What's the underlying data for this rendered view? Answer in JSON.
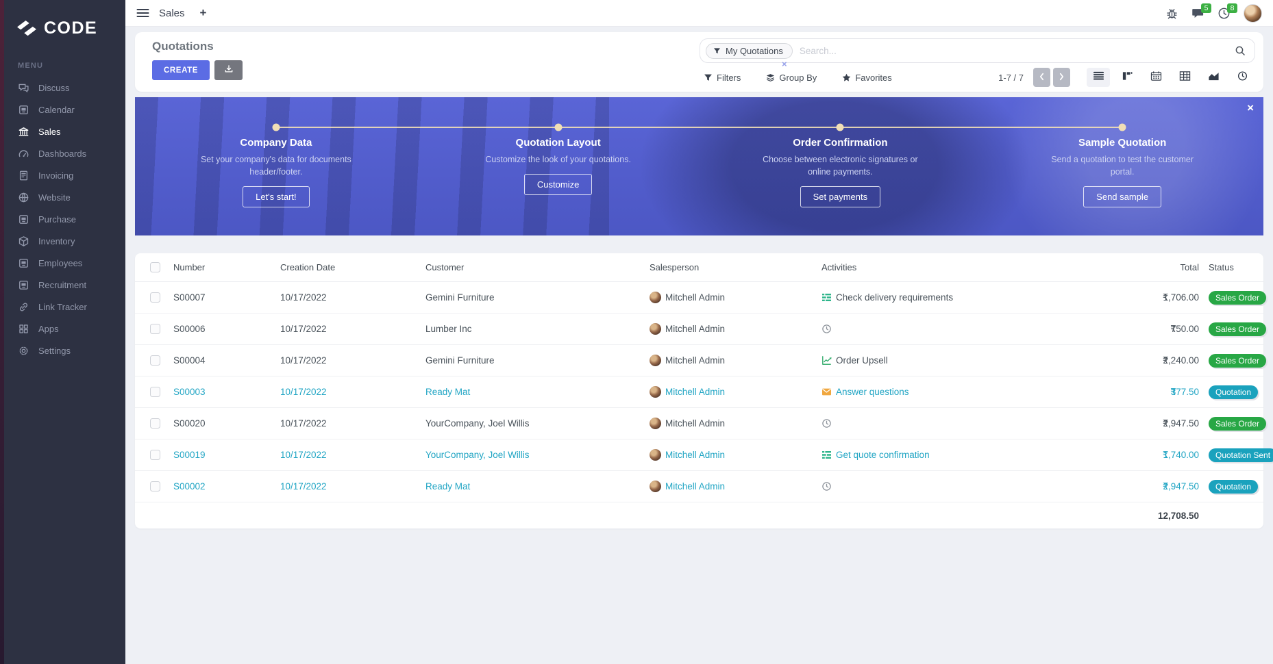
{
  "brand": {
    "name": "CODE"
  },
  "topbar": {
    "app_name": "Sales",
    "new_tab": "+",
    "message_count": "5",
    "activity_count": "8"
  },
  "sidebar": {
    "menu_label": "MENU",
    "items": [
      {
        "label": "Discuss",
        "icon": "discuss",
        "active": false
      },
      {
        "label": "Calendar",
        "icon": "window",
        "active": false
      },
      {
        "label": "Sales",
        "icon": "bank",
        "active": true
      },
      {
        "label": "Dashboards",
        "icon": "gauge",
        "active": false
      },
      {
        "label": "Invoicing",
        "icon": "invoice",
        "active": false
      },
      {
        "label": "Website",
        "icon": "globe",
        "active": false
      },
      {
        "label": "Purchase",
        "icon": "window",
        "active": false
      },
      {
        "label": "Inventory",
        "icon": "box",
        "active": false
      },
      {
        "label": "Employees",
        "icon": "window",
        "active": false
      },
      {
        "label": "Recruitment",
        "icon": "window",
        "active": false
      },
      {
        "label": "Link Tracker",
        "icon": "link",
        "active": false
      },
      {
        "label": "Apps",
        "icon": "grid",
        "active": false
      },
      {
        "label": "Settings",
        "icon": "gear",
        "active": false
      }
    ]
  },
  "control_panel": {
    "title": "Quotations",
    "create_label": "CREATE",
    "search": {
      "facet": "My Quotations",
      "facet_remove": "×",
      "placeholder": "Search..."
    },
    "filters_label": "Filters",
    "group_by_label": "Group By",
    "favorites_label": "Favorites",
    "pager_range": "1-7 / 7"
  },
  "banner": {
    "close": "×",
    "steps": [
      {
        "title": "Company Data",
        "desc": "Set your company's data for documents header/footer.",
        "button": "Let's start!"
      },
      {
        "title": "Quotation Layout",
        "desc": "Customize the look of your quotations.",
        "button": "Customize"
      },
      {
        "title": "Order Confirmation",
        "desc": "Choose between electronic signatures or online payments.",
        "button": "Set payments"
      },
      {
        "title": "Sample Quotation",
        "desc": "Send a quotation to test the customer portal.",
        "button": "Send sample"
      }
    ]
  },
  "table": {
    "columns": [
      "Number",
      "Creation Date",
      "Customer",
      "Salesperson",
      "Activities",
      "Total",
      "Status"
    ],
    "rows": [
      {
        "number": "S00007",
        "date": "10/17/2022",
        "customer": "Gemini Furniture",
        "salesperson": "Mitchell Admin",
        "activity": {
          "icon": "tasks",
          "label": "Check delivery requirements"
        },
        "currency": "₹",
        "total": "1,706.00",
        "status": {
          "label": "Sales Order",
          "color": "green"
        },
        "highlighted": false
      },
      {
        "number": "S00006",
        "date": "10/17/2022",
        "customer": "Lumber Inc",
        "salesperson": "Mitchell Admin",
        "activity": {
          "icon": "clock",
          "label": ""
        },
        "currency": "₹",
        "total": "750.00",
        "status": {
          "label": "Sales Order",
          "color": "green"
        },
        "highlighted": false
      },
      {
        "number": "S00004",
        "date": "10/17/2022",
        "customer": "Gemini Furniture",
        "salesperson": "Mitchell Admin",
        "activity": {
          "icon": "chart",
          "label": "Order Upsell"
        },
        "currency": "₹",
        "total": "2,240.00",
        "status": {
          "label": "Sales Order",
          "color": "green"
        },
        "highlighted": false
      },
      {
        "number": "S00003",
        "date": "10/17/2022",
        "customer": "Ready Mat",
        "salesperson": "Mitchell Admin",
        "activity": {
          "icon": "envelope",
          "label": "Answer questions"
        },
        "currency": "₹",
        "total": "377.50",
        "status": {
          "label": "Quotation",
          "color": "teal"
        },
        "highlighted": true
      },
      {
        "number": "S00020",
        "date": "10/17/2022",
        "customer": "YourCompany, Joel Willis",
        "salesperson": "Mitchell Admin",
        "activity": {
          "icon": "clock",
          "label": ""
        },
        "currency": "₹",
        "total": "2,947.50",
        "status": {
          "label": "Sales Order",
          "color": "green"
        },
        "highlighted": false
      },
      {
        "number": "S00019",
        "date": "10/17/2022",
        "customer": "YourCompany, Joel Willis",
        "salesperson": "Mitchell Admin",
        "activity": {
          "icon": "tasks",
          "label": "Get quote confirmation"
        },
        "currency": "₹",
        "total": "1,740.00",
        "status": {
          "label": "Quotation Sent",
          "color": "teal"
        },
        "highlighted": true
      },
      {
        "number": "S00002",
        "date": "10/17/2022",
        "customer": "Ready Mat",
        "salesperson": "Mitchell Admin",
        "activity": {
          "icon": "clock",
          "label": ""
        },
        "currency": "₹",
        "total": "2,947.50",
        "status": {
          "label": "Quotation",
          "color": "teal"
        },
        "highlighted": true
      }
    ],
    "footer_total": "12,708.50"
  },
  "colors": {
    "accent": "#5b6ce4",
    "sidebar_bg": "#2d3142",
    "page_bg": "#eef0f5",
    "banner": "#525dcc",
    "cream": "#f1dfb6",
    "teal": "#21a5c4",
    "green": "#28a745",
    "badge_teal": "#1aa2bd",
    "orange": "#f0a73f"
  }
}
